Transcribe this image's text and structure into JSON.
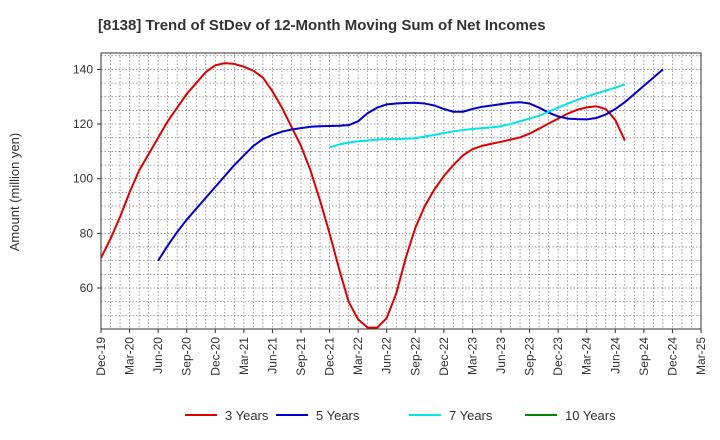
{
  "chart_data": {
    "type": "line",
    "title": "[8138]  Trend of StDev of 12-Month Moving Sum of Net Incomes",
    "xlabel": "",
    "ylabel": "Amount (million yen)",
    "x_tick_labels": [
      "Dec-19",
      "Mar-20",
      "Jun-20",
      "Sep-20",
      "Dec-20",
      "Mar-21",
      "Jun-21",
      "Sep-21",
      "Dec-21",
      "Mar-22",
      "Jun-22",
      "Sep-22",
      "Dec-22",
      "Mar-23",
      "Jun-23",
      "Sep-23",
      "Dec-23",
      "Mar-24",
      "Jun-24",
      "Sep-24",
      "Dec-24",
      "Mar-25"
    ],
    "y_ticks": [
      60,
      80,
      100,
      120,
      140
    ],
    "ylim": [
      45,
      146
    ],
    "grid": true,
    "legend_position": "bottom",
    "series": [
      {
        "name": "3 Years",
        "color": "#dd0000",
        "start_index": 0,
        "values": [
          71,
          78,
          86,
          95,
          103,
          109,
          115,
          121,
          126,
          131,
          135,
          139,
          141.5,
          142.3,
          142,
          141,
          139.5,
          137,
          132,
          126,
          119,
          112,
          103,
          92,
          80,
          67,
          55,
          48.5,
          45.5,
          45.5,
          49,
          58,
          71,
          82,
          90,
          96,
          101,
          105,
          108.5,
          110.8,
          112,
          112.8,
          113.5,
          114.3,
          115.1,
          116.5,
          118.3,
          120.2,
          122,
          123.8,
          125.2,
          126.1,
          126.5,
          125.5,
          121.5,
          114
        ]
      },
      {
        "name": "5 Years",
        "color": "#0000cc",
        "start_index": 6,
        "values": [
          70,
          75.5,
          80.5,
          85,
          89,
          93,
          97,
          101,
          105,
          108.5,
          112,
          114.5,
          116,
          117.2,
          118,
          118.5,
          119,
          119.2,
          119.3,
          119.4,
          119.6,
          121,
          124,
          126,
          127.2,
          127.5,
          127.7,
          127.8,
          127.5,
          126.8,
          125.5,
          124.5,
          124.5,
          125.5,
          126.3,
          126.8,
          127.3,
          127.8,
          128,
          127.5,
          126,
          124.2,
          122.8,
          122,
          121.8,
          121.7,
          122.2,
          123.5,
          125.5,
          128,
          131,
          134,
          137,
          140
        ]
      },
      {
        "name": "7 Years",
        "color": "#00e5e5",
        "start_index": 24,
        "values": [
          111.5,
          112.5,
          113.2,
          113.7,
          114,
          114.3,
          114.5,
          114.5,
          114.6,
          114.8,
          115.5,
          116,
          116.7,
          117.3,
          117.8,
          118.2,
          118.5,
          118.8,
          119.2,
          120,
          121,
          122,
          123,
          124.5,
          126,
          127.5,
          128.8,
          130,
          131.2,
          132.2,
          133.3,
          134.5
        ]
      },
      {
        "name": "10 Years",
        "color": "#008800",
        "start_index": 0,
        "values": []
      }
    ]
  }
}
